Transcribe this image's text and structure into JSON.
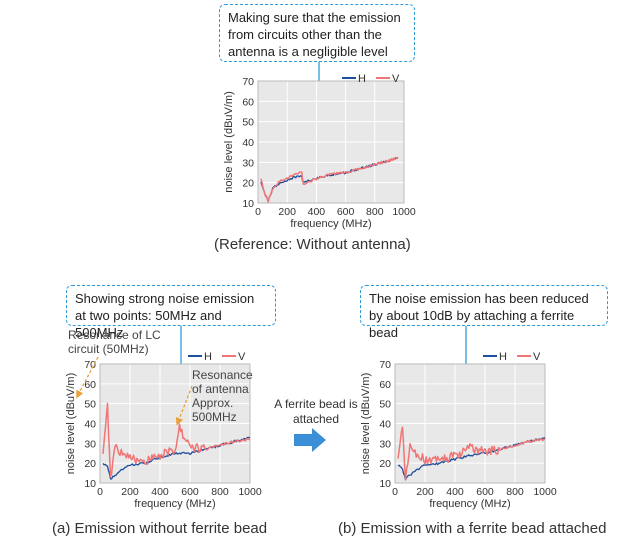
{
  "callouts": {
    "top": "Making sure that the emission from circuits other than the antenna is a negligible level",
    "a": "Showing strong noise emission at two points: 50MHz and 500MHz",
    "b": "The noise emission has been reduced by about 10dB by attaching a ferrite bead"
  },
  "captions": {
    "top": "(Reference: Without antenna)",
    "a": "(a) Emission without ferrite bead",
    "b": "(b) Emission with a ferrite bead attached"
  },
  "annotations": {
    "lc": "Resonance of LC circuit (50MHz)",
    "antenna": "Resonance of antenna Approx. 500MHz"
  },
  "arrow_label": "A ferrite bead is attached",
  "colors": {
    "H": "#1f4e9c",
    "V": "#f07575",
    "plot_bg": "#e8e8e8",
    "grid": "#ffffff",
    "callout_border": "#2f9ad9",
    "arrow": "#3a8fd6",
    "annotation_arrow": "#e9a23b"
  },
  "chart_data": [
    {
      "id": "reference",
      "type": "line",
      "xlabel": "frequency (MHz)",
      "ylabel": "noise level (dBuV/m)",
      "xlim": [
        0,
        1000
      ],
      "ylim": [
        10,
        70
      ],
      "xticks": [
        0,
        200,
        400,
        600,
        800,
        1000
      ],
      "yticks": [
        10,
        20,
        30,
        40,
        50,
        60,
        70
      ],
      "grid": true,
      "legend": "top-right",
      "series": [
        {
          "name": "H",
          "x": [
            20,
            50,
            70,
            100,
            150,
            200,
            250,
            300,
            310,
            400,
            500,
            600,
            700,
            800,
            900,
            960
          ],
          "values": [
            21,
            14,
            11,
            17,
            20,
            21,
            23,
            23,
            20,
            22,
            24,
            25,
            27,
            29,
            31,
            32
          ]
        },
        {
          "name": "V",
          "x": [
            20,
            50,
            70,
            100,
            150,
            200,
            250,
            300,
            310,
            400,
            500,
            600,
            700,
            800,
            900,
            960
          ],
          "values": [
            22,
            14,
            11,
            17,
            21,
            22,
            24,
            25,
            19,
            22,
            24,
            25,
            27,
            29,
            31,
            32
          ]
        }
      ]
    },
    {
      "id": "without_bead",
      "type": "line",
      "xlabel": "frequency (MHz)",
      "ylabel": "noise level (dBuV/m)",
      "xlim": [
        0,
        1000
      ],
      "ylim": [
        10,
        70
      ],
      "xticks": [
        0,
        200,
        400,
        600,
        800,
        1000
      ],
      "yticks": [
        10,
        20,
        30,
        40,
        50,
        60,
        70
      ],
      "grid": true,
      "legend": "top-right",
      "series": [
        {
          "name": "H",
          "x": [
            20,
            50,
            70,
            100,
            150,
            200,
            300,
            400,
            500,
            600,
            700,
            800,
            900,
            1000
          ],
          "values": [
            20,
            18,
            12,
            14,
            17,
            19,
            20,
            23,
            25,
            25,
            27,
            29,
            31,
            33
          ]
        },
        {
          "name": "V",
          "x": [
            20,
            50,
            70,
            100,
            150,
            200,
            300,
            400,
            500,
            530,
            600,
            700,
            800,
            900,
            1000
          ],
          "values": [
            25,
            49,
            13,
            28,
            25,
            22,
            21,
            24,
            27,
            38,
            28,
            27,
            29,
            31,
            32
          ]
        }
      ]
    },
    {
      "id": "with_bead",
      "type": "line",
      "xlabel": "frequency (MHz)",
      "ylabel": "noise level (dBuV/m)",
      "xlim": [
        0,
        1000
      ],
      "ylim": [
        10,
        70
      ],
      "xticks": [
        0,
        200,
        400,
        600,
        800,
        1000
      ],
      "yticks": [
        10,
        20,
        30,
        40,
        50,
        60,
        70
      ],
      "grid": true,
      "legend": "top-right",
      "series": [
        {
          "name": "H",
          "x": [
            20,
            50,
            70,
            100,
            150,
            200,
            300,
            400,
            500,
            600,
            700,
            800,
            900,
            1000
          ],
          "values": [
            19,
            17,
            12,
            14,
            17,
            19,
            20,
            22,
            24,
            25,
            27,
            29,
            31,
            33
          ]
        },
        {
          "name": "V",
          "x": [
            20,
            50,
            70,
            100,
            150,
            200,
            300,
            400,
            500,
            600,
            700,
            800,
            900,
            1000
          ],
          "values": [
            22,
            40,
            13,
            28,
            24,
            22,
            21,
            24,
            28,
            26,
            27,
            29,
            31,
            32
          ]
        }
      ]
    }
  ]
}
